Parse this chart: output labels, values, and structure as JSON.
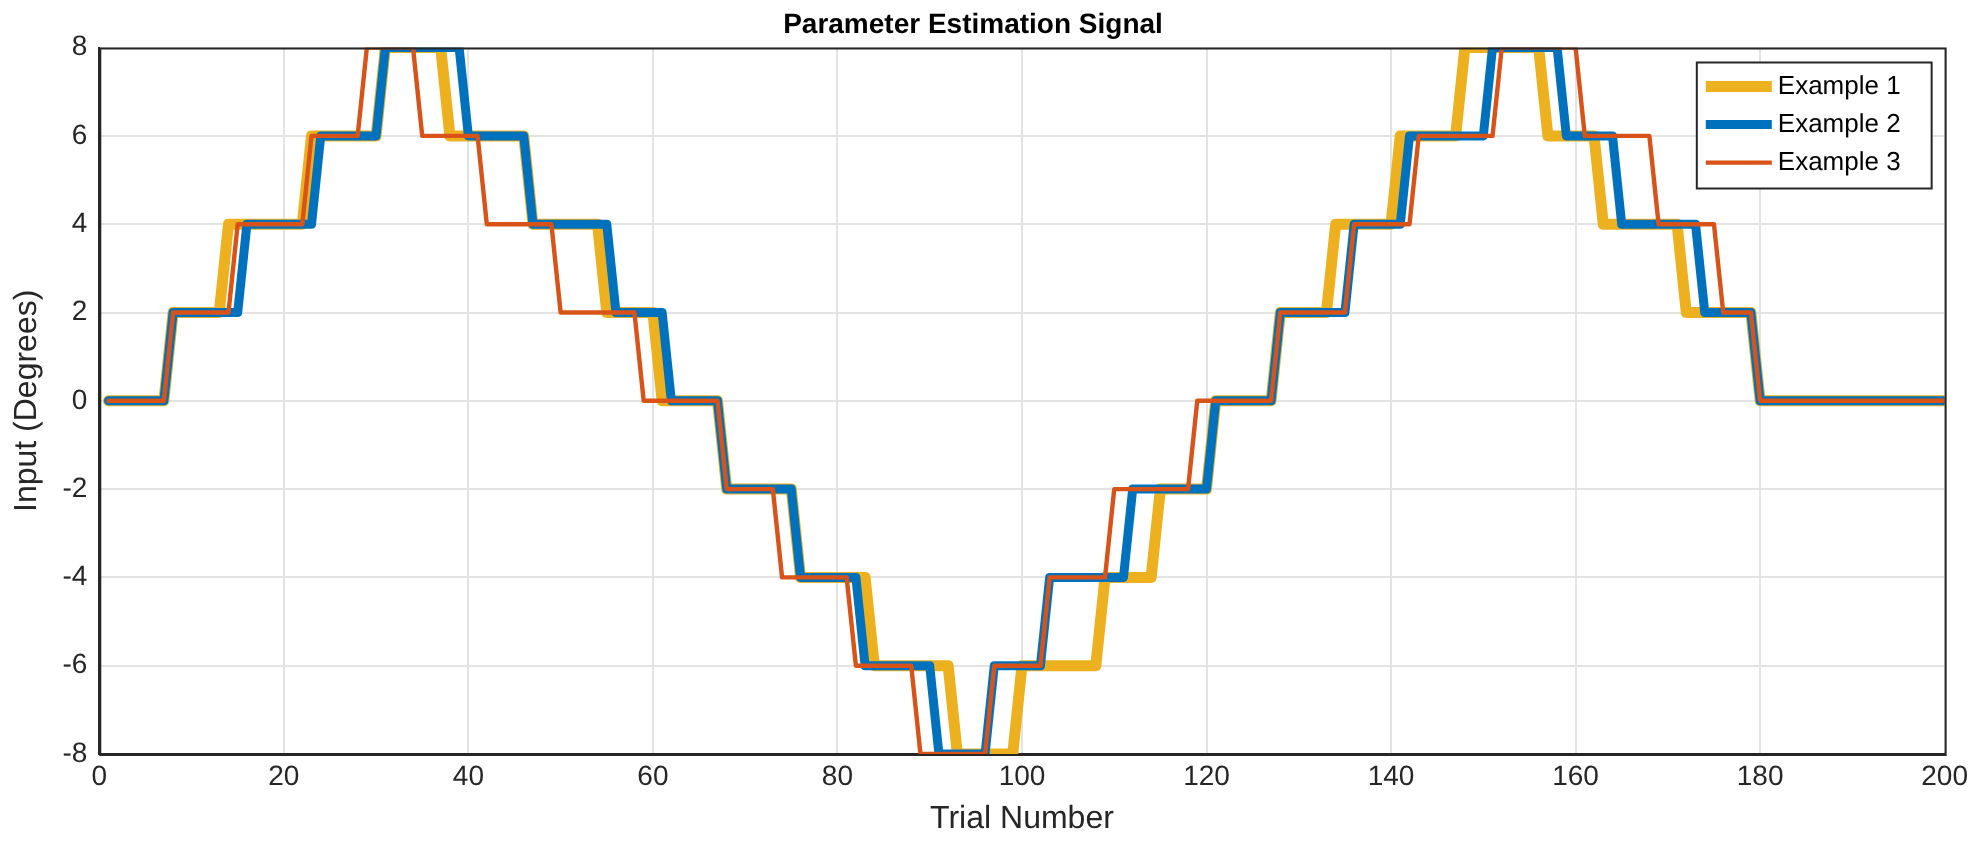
{
  "chart_data": {
    "type": "line",
    "title": "Parameter Estimation Signal",
    "xlabel": "Trial Number",
    "ylabel": "Input (Degrees)",
    "xlim": [
      0,
      200
    ],
    "xticks": [
      0,
      20,
      40,
      60,
      80,
      100,
      120,
      140,
      160,
      180,
      200
    ],
    "ylim": [
      -8,
      8
    ],
    "yticks": [
      -8,
      -6,
      -4,
      -2,
      0,
      2,
      4,
      6,
      8
    ],
    "grid": true,
    "legend": "top right",
    "marker": "none",
    "line_style": "solid",
    "series": [
      {
        "name": "Example 1",
        "color": "#edb120",
        "x": [
          1,
          7,
          8,
          13,
          14,
          22,
          23,
          30,
          31,
          37,
          38,
          46,
          47,
          54,
          55,
          60,
          61,
          67,
          68,
          75,
          76,
          83,
          84,
          92,
          93,
          99,
          100,
          108,
          109,
          114,
          115,
          120,
          121,
          127,
          128,
          133,
          134,
          140,
          141,
          147,
          148,
          156,
          157,
          162,
          163,
          171,
          172,
          179,
          180,
          200
        ],
        "values": [
          0,
          0,
          2,
          2,
          4,
          4,
          6,
          6,
          8,
          8,
          6,
          6,
          4,
          4,
          2,
          2,
          0,
          0,
          -2,
          -2,
          -4,
          -4,
          -6,
          -6,
          -8,
          -8,
          -6,
          -6,
          -4,
          -4,
          -2,
          -2,
          0,
          0,
          2,
          2,
          4,
          4,
          6,
          6,
          8,
          8,
          6,
          6,
          4,
          4,
          2,
          2,
          0,
          0
        ]
      },
      {
        "name": "Example 2",
        "color": "#0072bd",
        "x": [
          1,
          7,
          8,
          15,
          16,
          23,
          24,
          30,
          31,
          39,
          40,
          46,
          47,
          55,
          56,
          61,
          62,
          67,
          68,
          75,
          76,
          82,
          83,
          90,
          91,
          96,
          97,
          102,
          103,
          111,
          112,
          120,
          121,
          127,
          128,
          135,
          136,
          141,
          142,
          150,
          151,
          158,
          159,
          164,
          165,
          173,
          174,
          179,
          180,
          200
        ],
        "values": [
          0,
          0,
          2,
          2,
          4,
          4,
          6,
          6,
          8,
          8,
          6,
          6,
          4,
          4,
          2,
          2,
          0,
          0,
          -2,
          -2,
          -4,
          -4,
          -6,
          -6,
          -8,
          -8,
          -6,
          -6,
          -4,
          -4,
          -2,
          -2,
          0,
          0,
          2,
          2,
          4,
          4,
          6,
          6,
          8,
          8,
          6,
          6,
          4,
          4,
          2,
          2,
          0,
          0
        ]
      },
      {
        "name": "Example 3",
        "color": "#d95319",
        "x": [
          1,
          7,
          8,
          14,
          15,
          22,
          23,
          28,
          29,
          34,
          35,
          41,
          42,
          49,
          50,
          58,
          59,
          67,
          68,
          73,
          74,
          81,
          82,
          88,
          89,
          96,
          97,
          102,
          103,
          109,
          110,
          118,
          119,
          127,
          128,
          135,
          136,
          142,
          143,
          151,
          152,
          160,
          161,
          168,
          169,
          175,
          176,
          179,
          180,
          200
        ],
        "values": [
          0,
          0,
          2,
          2,
          4,
          4,
          6,
          6,
          8,
          8,
          6,
          6,
          4,
          4,
          2,
          2,
          0,
          0,
          -2,
          -2,
          -4,
          -4,
          -6,
          -6,
          -8,
          -8,
          -6,
          -6,
          -4,
          -4,
          -2,
          -2,
          0,
          0,
          2,
          2,
          4,
          4,
          6,
          6,
          8,
          8,
          6,
          6,
          4,
          4,
          2,
          2,
          0,
          0
        ]
      }
    ]
  }
}
